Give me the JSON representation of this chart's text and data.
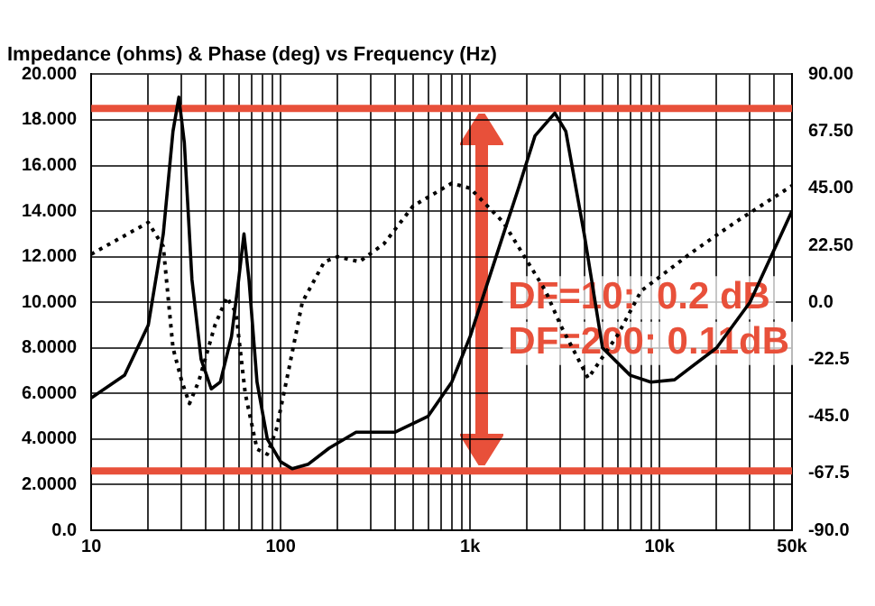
{
  "chart_data": {
    "type": "line",
    "title": "Impedance (ohms) & Phase (deg) vs Frequency (Hz)",
    "log": "x",
    "grid": true,
    "legend": false,
    "marker": "none",
    "xlim": [
      10,
      50000
    ],
    "xticks": [
      10,
      {
        "value": 20,
        "label": null
      },
      {
        "value": 30,
        "label": null
      },
      {
        "value": 40,
        "label": null
      },
      {
        "value": 50,
        "label": null
      },
      {
        "value": 60,
        "label": null
      },
      {
        "value": 70,
        "label": null
      },
      {
        "value": 80,
        "label": null
      },
      {
        "value": 90,
        "label": null
      },
      100,
      {
        "value": 200,
        "label": null
      },
      {
        "value": 300,
        "label": null
      },
      {
        "value": 400,
        "label": null
      },
      {
        "value": 500,
        "label": null
      },
      {
        "value": 600,
        "label": null
      },
      {
        "value": 700,
        "label": null
      },
      {
        "value": 800,
        "label": null
      },
      {
        "value": 900,
        "label": null
      },
      {
        "value": 1000,
        "label": "1k"
      },
      {
        "value": 2000,
        "label": null
      },
      {
        "value": 3000,
        "label": null
      },
      {
        "value": 4000,
        "label": null
      },
      {
        "value": 5000,
        "label": null
      },
      {
        "value": 6000,
        "label": null
      },
      {
        "value": 7000,
        "label": null
      },
      {
        "value": 8000,
        "label": null
      },
      {
        "value": 9000,
        "label": null
      },
      {
        "value": 10000,
        "label": "10k"
      },
      {
        "value": 20000,
        "label": null
      },
      {
        "value": 30000,
        "label": null
      },
      {
        "value": 40000,
        "label": null
      },
      {
        "value": 50000,
        "label": "50k"
      }
    ],
    "ylim": [
      0,
      20
    ],
    "yticks": [
      {
        "value": 0,
        "label": "0.0"
      },
      {
        "value": 2,
        "label": "2.0000"
      },
      {
        "value": 4,
        "label": "4.0000"
      },
      {
        "value": 6,
        "label": "6.0000"
      },
      {
        "value": 8,
        "label": "8.0000"
      },
      {
        "value": 10,
        "label": "10.000"
      },
      {
        "value": 12,
        "label": "12.000"
      },
      {
        "value": 14,
        "label": "14.000"
      },
      {
        "value": 16,
        "label": "16.000"
      },
      {
        "value": 18,
        "label": "18.000"
      },
      {
        "value": 20,
        "label": "20.000"
      }
    ],
    "y2lim": [
      -90,
      90
    ],
    "y2ticks": [
      {
        "value": -90,
        "label": "-90.0"
      },
      {
        "value": -67.5,
        "label": "-67.5"
      },
      {
        "value": -45,
        "label": "-45.0"
      },
      {
        "value": -22.5,
        "label": "-22.5"
      },
      {
        "value": 0,
        "label": "0.0"
      },
      {
        "value": 22.5,
        "label": "22.50"
      },
      {
        "value": 45,
        "label": "45.00"
      },
      {
        "value": 67.5,
        "label": "67.50"
      },
      {
        "value": 90,
        "label": "90.00"
      }
    ],
    "series": [
      {
        "color": "#000000",
        "line_style": "solid",
        "x": [
          10,
          15,
          20,
          24,
          27,
          29,
          31,
          34,
          38,
          43,
          48,
          55,
          60,
          64,
          68,
          75,
          85,
          100,
          115,
          140,
          180,
          250,
          300,
          400,
          600,
          800,
          1000,
          1500,
          1800,
          2200,
          2800,
          3200,
          4000,
          5000,
          7000,
          9000,
          12000,
          20000,
          30000,
          50000
        ],
        "values": [
          5.8,
          6.8,
          9,
          13,
          17.5,
          19,
          17,
          11,
          7.5,
          6.2,
          6.5,
          8.5,
          11,
          13,
          11,
          6.5,
          4,
          3,
          2.7,
          2.9,
          3.6,
          4.3,
          4.3,
          4.3,
          5,
          6.5,
          8.5,
          13,
          15,
          17.3,
          18.3,
          17.5,
          13,
          8,
          6.8,
          6.5,
          6.6,
          8,
          10,
          14
        ]
      },
      {
        "color": "#000000",
        "line_style": "dotted",
        "axis": "y2",
        "x": [
          10,
          20,
          24,
          27,
          30,
          33,
          37,
          45,
          52,
          58,
          65,
          75,
          85,
          95,
          110,
          130,
          170,
          200,
          260,
          350,
          500,
          800,
          1000,
          1500,
          2500,
          3000,
          4200,
          6000,
          8000,
          15000,
          25000,
          50000
        ],
        "values": [
          19,
          31.5,
          22,
          -18,
          -31,
          -40,
          -31,
          -9,
          2,
          -4,
          -36,
          -58,
          -60,
          -50,
          -27,
          0,
          16,
          18,
          16,
          23,
          38,
          47,
          45,
          31.5,
          4.5,
          -9,
          -30,
          -13,
          4.5,
          20,
          31.5,
          46
        ]
      }
    ],
    "ref_lines": [
      {
        "axis": "y",
        "value": 18.5,
        "color": "#e8503a"
      },
      {
        "axis": "y",
        "value": 2.6,
        "color": "#e8503a"
      }
    ],
    "annotations": [
      "DF=10:  0.2 dB",
      "DF=200: 0.11dB"
    ]
  }
}
